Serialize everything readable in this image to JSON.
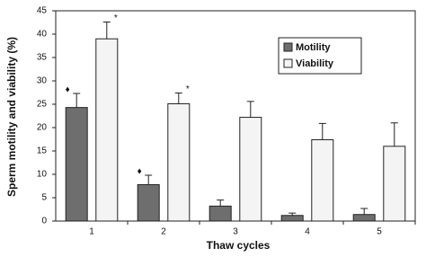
{
  "chart_data": {
    "type": "bar",
    "x_label": "Thaw cycles",
    "y_label": "Sperm motility and viability (%)",
    "categories": [
      "1",
      "2",
      "3",
      "4",
      "5"
    ],
    "series": [
      {
        "name": "Motility",
        "color": "#6e6e6e",
        "values": [
          24.3,
          7.8,
          3.2,
          1.2,
          1.4
        ],
        "errors": [
          3,
          2,
          1.3,
          0.5,
          1.3
        ],
        "annotations": [
          "♦",
          "♦",
          null,
          null,
          null
        ]
      },
      {
        "name": "Viability",
        "color": "#f4f4f4",
        "values": [
          39,
          25.1,
          22.2,
          17.4,
          16
        ],
        "errors": [
          3.6,
          2.3,
          3.4,
          3.5,
          5
        ],
        "annotations": [
          "*",
          "*",
          null,
          null,
          null
        ]
      }
    ],
    "ylim": [
      0,
      45
    ],
    "yticks": [
      0,
      5,
      10,
      15,
      20,
      25,
      30,
      35,
      40,
      45
    ],
    "legend": "upper right"
  }
}
